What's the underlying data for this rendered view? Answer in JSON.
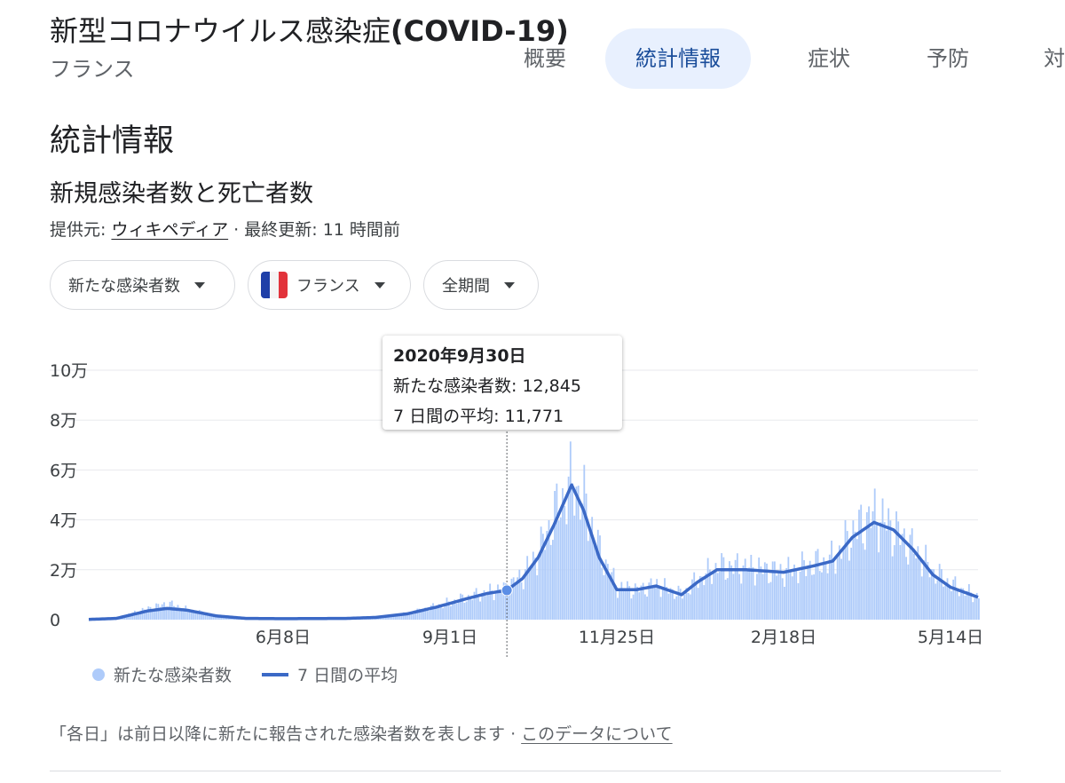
{
  "header": {
    "title_jp": "新型コロナウイルス感染症",
    "title_latin": "(COVID-19)",
    "subtitle": "フランス"
  },
  "tabs": [
    {
      "label": "概要",
      "active": false
    },
    {
      "label": "統計情報",
      "active": true
    },
    {
      "label": "症状",
      "active": false
    },
    {
      "label": "予防",
      "active": false
    },
    {
      "label": "対",
      "active": false
    }
  ],
  "section_title": "統計情報",
  "chart_heading": "新規感染者数と死亡者数",
  "source": {
    "prefix": "提供元:",
    "link": "ウィキペディア",
    "separator": "·",
    "updated_label": "最終更新:",
    "updated_value": "11 時間前"
  },
  "filters": {
    "metric": "新たな感染者数",
    "country": "フランス",
    "period": "全期間"
  },
  "tooltip": {
    "date": "2020年9月30日",
    "daily_label": "新たな感染者数:",
    "daily_value": "12,845",
    "avg_label": "7 日間の平均:",
    "avg_value": "11,771"
  },
  "legend": {
    "daily": "新たな感染者数",
    "average": "7 日間の平均"
  },
  "footnote": {
    "text": "「各日」は前日以降に新たに報告された感染者数を表します",
    "separator": "·",
    "link": "このデータについて"
  },
  "colors": {
    "bar": "#aecbfa",
    "line": "#3b69c6",
    "grid": "#e8eaed",
    "active_tab_bg": "#e8f0fe"
  },
  "chart_data": {
    "type": "bar",
    "x_start": "2020-03-01",
    "x_end": "2021-05-28",
    "x_ticks": [
      "6月8日",
      "9月1日",
      "11月25日",
      "2月18日",
      "5月14日"
    ],
    "y_ticks": [
      "0",
      "2万",
      "4万",
      "6万",
      "8万",
      "10万"
    ],
    "ylim": [
      0,
      100000
    ],
    "grid": true,
    "highlight_date": "2020-09-30",
    "series": [
      {
        "name": "新たな感染者数",
        "kind": "bar",
        "points": [
          [
            "2020-03-01",
            100
          ],
          [
            "2020-03-15",
            800
          ],
          [
            "2020-03-31",
            4500
          ],
          [
            "2020-04-10",
            6500
          ],
          [
            "2020-04-20",
            4000
          ],
          [
            "2020-05-05",
            1500
          ],
          [
            "2020-05-20",
            600
          ],
          [
            "2020-06-08",
            500
          ],
          [
            "2020-06-25",
            550
          ],
          [
            "2020-07-10",
            600
          ],
          [
            "2020-07-25",
            1000
          ],
          [
            "2020-08-10",
            2500
          ],
          [
            "2020-08-25",
            5500
          ],
          [
            "2020-09-10",
            9000
          ],
          [
            "2020-09-20",
            11000
          ],
          [
            "2020-09-30",
            12845
          ],
          [
            "2020-10-08",
            18000
          ],
          [
            "2020-10-16",
            27000
          ],
          [
            "2020-10-24",
            42000
          ],
          [
            "2020-11-02",
            55000
          ],
          [
            "2020-11-08",
            47000
          ],
          [
            "2020-11-16",
            27000
          ],
          [
            "2020-11-25",
            13000
          ],
          [
            "2020-12-05",
            12000
          ],
          [
            "2020-12-15",
            14000
          ],
          [
            "2020-12-28",
            10000
          ],
          [
            "2021-01-05",
            16000
          ],
          [
            "2021-01-15",
            21000
          ],
          [
            "2021-01-30",
            21000
          ],
          [
            "2021-02-18",
            19000
          ],
          [
            "2021-03-05",
            22000
          ],
          [
            "2021-03-15",
            24000
          ],
          [
            "2021-03-25",
            35000
          ],
          [
            "2021-04-05",
            42000
          ],
          [
            "2021-04-15",
            36000
          ],
          [
            "2021-04-25",
            28000
          ],
          [
            "2021-05-05",
            19000
          ],
          [
            "2021-05-14",
            14000
          ],
          [
            "2021-05-28",
            9000
          ]
        ]
      },
      {
        "name": "7 日間の平均",
        "kind": "line",
        "points": [
          [
            "2020-03-01",
            100
          ],
          [
            "2020-03-15",
            500
          ],
          [
            "2020-03-31",
            3500
          ],
          [
            "2020-04-10",
            4500
          ],
          [
            "2020-04-20",
            3800
          ],
          [
            "2020-05-05",
            1500
          ],
          [
            "2020-05-20",
            500
          ],
          [
            "2020-06-08",
            400
          ],
          [
            "2020-06-25",
            450
          ],
          [
            "2020-07-10",
            500
          ],
          [
            "2020-07-25",
            900
          ],
          [
            "2020-08-10",
            2300
          ],
          [
            "2020-08-25",
            5000
          ],
          [
            "2020-09-10",
            8500
          ],
          [
            "2020-09-20",
            10500
          ],
          [
            "2020-09-30",
            11771
          ],
          [
            "2020-10-08",
            16500
          ],
          [
            "2020-10-16",
            25000
          ],
          [
            "2020-10-24",
            38000
          ],
          [
            "2020-11-02",
            54000
          ],
          [
            "2020-11-08",
            44000
          ],
          [
            "2020-11-16",
            25000
          ],
          [
            "2020-11-25",
            12000
          ],
          [
            "2020-12-05",
            12000
          ],
          [
            "2020-12-15",
            13500
          ],
          [
            "2020-12-28",
            10000
          ],
          [
            "2021-01-05",
            15000
          ],
          [
            "2021-01-15",
            20000
          ],
          [
            "2021-01-30",
            20000
          ],
          [
            "2021-02-18",
            19000
          ],
          [
            "2021-03-05",
            21500
          ],
          [
            "2021-03-15",
            23500
          ],
          [
            "2021-03-25",
            33000
          ],
          [
            "2021-04-05",
            39000
          ],
          [
            "2021-04-15",
            36000
          ],
          [
            "2021-04-25",
            28000
          ],
          [
            "2021-05-05",
            18000
          ],
          [
            "2021-05-14",
            13000
          ],
          [
            "2021-05-28",
            9000
          ]
        ]
      }
    ]
  }
}
